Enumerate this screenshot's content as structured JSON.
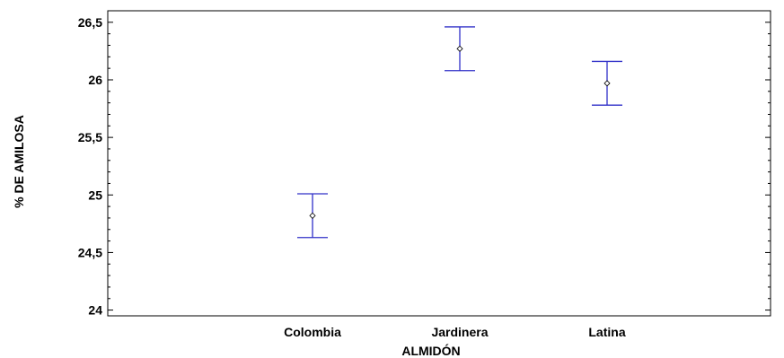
{
  "chart_data": {
    "type": "scatter",
    "subtype": "means-with-error-bars",
    "xlabel": "ALMIDÓN",
    "ylabel": "% DE AMILOSA",
    "categories": [
      "Colombia",
      "Jardinera",
      "Latina"
    ],
    "means": [
      24.82,
      26.27,
      25.97
    ],
    "lower": [
      24.63,
      26.08,
      25.78
    ],
    "upper": [
      25.01,
      26.46,
      26.16
    ],
    "ylim": [
      23.95,
      26.6
    ],
    "yticks": [
      24,
      24.5,
      25,
      25.5,
      26,
      26.5
    ],
    "ytick_labels": [
      "24",
      "24,5",
      "25",
      "25,5",
      "26",
      "26,5"
    ],
    "grid": false,
    "legend": "none",
    "colors": {
      "error_bar": "#3030c8",
      "marker": "#000000",
      "axis": "#000000"
    }
  }
}
